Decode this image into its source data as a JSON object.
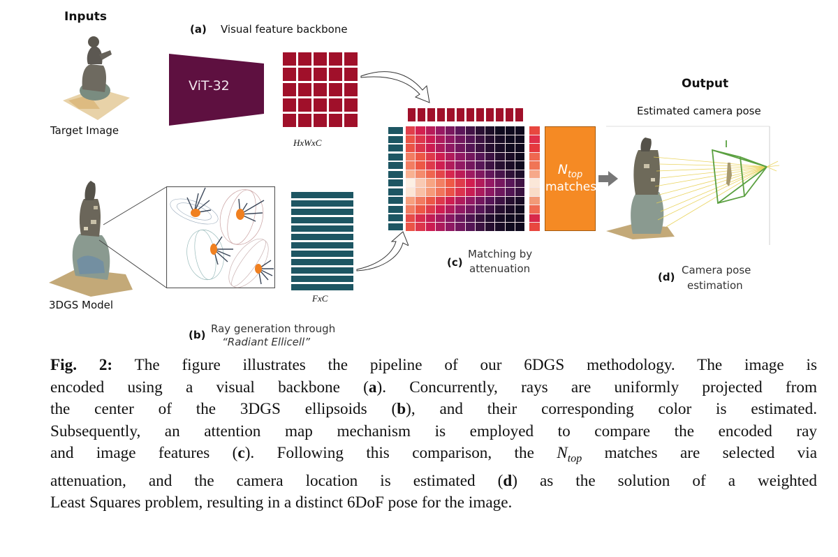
{
  "figure": {
    "inputs_title": "Inputs",
    "output_title": "Output",
    "target_image_label": "Target Image",
    "model_label": "3DGS Model",
    "panel_a": {
      "tag": "(a)",
      "label": "Visual feature backbone",
      "backbone": "ViT-32",
      "feature_shape": "HxWxC"
    },
    "panel_b": {
      "tag": "(b)",
      "line1": "Ray generation through",
      "line2": "“Radiant Ellicell”",
      "feature_shape": "FxC"
    },
    "panel_c": {
      "tag": "(c)",
      "line1": "Matching by",
      "line2": "attenuation"
    },
    "ntop": {
      "symbol": "N",
      "subscript": "top",
      "label": "matches"
    },
    "panel_d": {
      "tag": "(d)",
      "line1": "Camera pose",
      "line2": "estimation",
      "estimated_pose_label": "Estimated camera pose"
    },
    "colors": {
      "vit_purple": "#5e1040",
      "image_feature_red": "#a0102a",
      "ray_feature_teal": "#1d5663",
      "ntop_orange": "#f58a24",
      "ellipsoid_center_orange": "#f08020",
      "frustum_green": "#5aa040",
      "ray_yellow": "#e8d050"
    },
    "heatmap": {
      "rows": 12,
      "cols": 12,
      "colormap": "magma-like (cream → orange → magenta → dark purple)",
      "row_vector": [
        "#e8473f",
        "#e0304a",
        "#e5393f",
        "#ef6750",
        "#f07556",
        "#f6a88a",
        "#fbe7d8",
        "#f9dcc8",
        "#f29a78",
        "#ef6a52",
        "#d8284a",
        "#e8473f"
      ]
    }
  },
  "caption": {
    "label": "Fig. 2:",
    "lines": [
      [
        "",
        " The figure illustrates the pipeline of our 6DGS methodology. The image is"
      ],
      [
        "encoded using a visual backbone (",
        "a",
        "). Concurrently, rays are uniformly projected from"
      ],
      [
        "the center of the 3DGS ellipsoids (",
        "b",
        "), and their corresponding color is estimated."
      ],
      [
        "Subsequently, an attention map mechanism is employed to compare the encoded ray"
      ],
      [
        "and image features (",
        "c",
        "). Following this comparison, the ",
        "N",
        "top",
        " matches are selected via"
      ],
      [
        "attenuation, and the camera location is estimated (",
        "d",
        ") as the solution of a weighted"
      ],
      [
        "Least Squares problem, resulting in a distinct 6DoF pose for the image."
      ]
    ],
    "line1_rest": " The figure illustrates the pipeline of our 6DGS methodology. The image is",
    "line2_pre": "encoded using a visual backbone (",
    "line2_bold": "a",
    "line2_post": "). Concurrently, rays are uniformly projected from",
    "line3_pre": "the center of the 3DGS ellipsoids (",
    "line3_bold": "b",
    "line3_post": "), and their corresponding color is estimated.",
    "line4": "Subsequently, an attention map mechanism is employed to compare the encoded ray",
    "line5_pre": "and image features (",
    "line5_bold": "c",
    "line5_mid": "). Following this comparison, the ",
    "line5_math": "N",
    "line5_sub": "top",
    "line5_post": " matches are selected via",
    "line6_pre": "attenuation, and the camera location is estimated (",
    "line6_bold": "d",
    "line6_post": ") as the solution of a weighted",
    "line7": "Least Squares problem, resulting in a distinct 6DoF pose for the image."
  }
}
